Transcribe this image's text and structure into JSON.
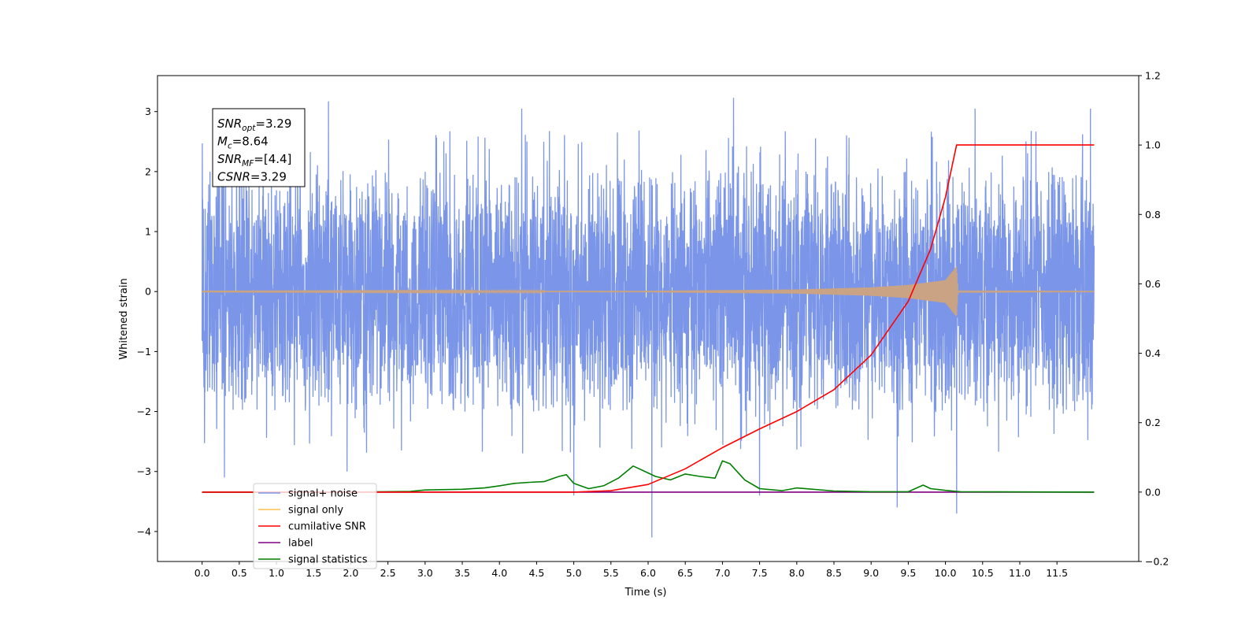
{
  "chart_data": {
    "type": "line",
    "title": "",
    "xlabel": "Time (s)",
    "ylabel": "Whitened strain",
    "y2label": "",
    "xlim": [
      -0.6,
      12.6
    ],
    "ylim": [
      -4.5,
      3.6
    ],
    "y2lim": [
      -0.2,
      1.2
    ],
    "x_ticks": [
      "0.0",
      "0.5",
      "1.0",
      "1.5",
      "2.0",
      "2.5",
      "3.0",
      "3.5",
      "4.0",
      "4.5",
      "5.0",
      "5.5",
      "6.0",
      "6.5",
      "7.0",
      "7.5",
      "8.0",
      "8.5",
      "9.0",
      "9.5",
      "10.0",
      "10.5",
      "11.0",
      "11.5"
    ],
    "y_ticks": [
      "3",
      "2",
      "1",
      "0",
      "−1",
      "−2",
      "−3",
      "−4"
    ],
    "y2_ticks": [
      "1.2",
      "1.0",
      "0.8",
      "0.6",
      "0.4",
      "0.2",
      "0.0",
      "−0.2"
    ],
    "annotation": [
      {
        "main": "SNR",
        "sub": "opt",
        "rest": "=3.29"
      },
      {
        "main": "M",
        "sub": "c",
        "rest": "=8.64"
      },
      {
        "main": "SNR",
        "sub": "MF",
        "rest": "=[4.4]"
      },
      {
        "main": "CSNR",
        "sub": "",
        "rest": "=3.29"
      }
    ],
    "legend": {
      "position": "lower-left",
      "entries": [
        {
          "label": "signal+ noise",
          "color": "#7b96e8"
        },
        {
          "label": "signal only",
          "color": "#ffc04d"
        },
        {
          "label": "cumilative SNR",
          "color": "#ff0000"
        },
        {
          "label": "label",
          "color": "#800080"
        },
        {
          "label": "signal statistics",
          "color": "#008000"
        }
      ]
    },
    "series": [
      {
        "name": "signal+ noise",
        "color": "#7b96e8",
        "axis": "left",
        "x_range": [
          0.0,
          12.0
        ],
        "typical_band": [
          -1.3,
          1.3
        ],
        "envelope": [
          -1.9,
          2.0
        ],
        "peaks": [
          {
            "x": 0.3,
            "y": -3.1
          },
          {
            "x": 1.7,
            "y": 3.17
          },
          {
            "x": 1.95,
            "y": -3.0
          },
          {
            "x": 4.3,
            "y": 3.05
          },
          {
            "x": 5.0,
            "y": -3.4
          },
          {
            "x": 6.05,
            "y": -4.1
          },
          {
            "x": 7.15,
            "y": 3.23
          },
          {
            "x": 7.5,
            "y": -3.4
          },
          {
            "x": 9.35,
            "y": -3.6
          },
          {
            "x": 10.15,
            "y": -3.7
          },
          {
            "x": 10.4,
            "y": 3.05
          },
          {
            "x": 11.95,
            "y": 3.05
          }
        ]
      },
      {
        "name": "signal only",
        "color": "#c9a383",
        "axis": "left",
        "chirp_end": 10.15,
        "amplitude": [
          [
            0.0,
            0.004
          ],
          [
            6.0,
            0.012
          ],
          [
            8.0,
            0.035
          ],
          [
            9.0,
            0.07
          ],
          [
            9.5,
            0.11
          ],
          [
            10.0,
            0.19
          ],
          [
            10.15,
            0.42
          ],
          [
            10.17,
            0.005
          ],
          [
            12.0,
            0.003
          ]
        ]
      },
      {
        "name": "cumilative SNR",
        "color": "#ff0000",
        "axis": "right",
        "x": [
          0.0,
          5.0,
          5.5,
          6.0,
          6.5,
          7.0,
          7.5,
          8.0,
          8.5,
          9.0,
          9.5,
          9.8,
          10.0,
          10.1,
          10.15,
          12.0
        ],
        "y": [
          0.0,
          0.0,
          0.004,
          0.022,
          0.067,
          0.128,
          0.182,
          0.232,
          0.295,
          0.395,
          0.55,
          0.7,
          0.85,
          0.95,
          1.0,
          1.0
        ]
      },
      {
        "name": "label",
        "color": "#800080",
        "axis": "right",
        "x": [
          0.0,
          12.0
        ],
        "y": [
          0.0,
          0.0
        ]
      },
      {
        "name": "signal statistics",
        "color": "#008000",
        "axis": "right",
        "x": [
          0.0,
          2.0,
          2.8,
          3.0,
          3.5,
          3.8,
          4.0,
          4.2,
          4.4,
          4.6,
          4.8,
          4.9,
          5.0,
          5.2,
          5.4,
          5.6,
          5.8,
          5.95,
          6.1,
          6.3,
          6.5,
          6.7,
          6.9,
          7.0,
          7.1,
          7.3,
          7.5,
          7.8,
          8.0,
          8.5,
          9.0,
          9.5,
          9.7,
          9.8,
          10.0,
          10.2,
          12.0
        ],
        "y": [
          0.0,
          0.0,
          0.002,
          0.006,
          0.008,
          0.012,
          0.018,
          0.025,
          0.028,
          0.03,
          0.045,
          0.05,
          0.025,
          0.01,
          0.018,
          0.04,
          0.075,
          0.06,
          0.045,
          0.035,
          0.052,
          0.045,
          0.04,
          0.09,
          0.082,
          0.035,
          0.01,
          0.004,
          0.012,
          0.003,
          0.001,
          0.001,
          0.02,
          0.01,
          0.005,
          0.001,
          0.0
        ]
      }
    ]
  }
}
